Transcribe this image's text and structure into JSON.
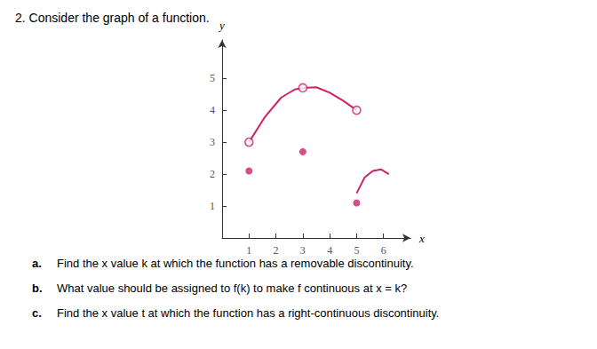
{
  "chart_data": {
    "type": "line",
    "title": "2. Consider the graph of a function.",
    "xlabel": "x",
    "ylabel": "y",
    "xlim": [
      0,
      7
    ],
    "ylim": [
      0,
      6.2
    ],
    "xticks": [
      1,
      2,
      3,
      4,
      5,
      6
    ],
    "yticks": [
      1,
      2,
      3,
      4,
      5
    ],
    "grid": false,
    "series": [
      {
        "type": "line",
        "color": "#cc2266",
        "x": [
          1,
          1.6,
          2.2,
          2.7,
          3
        ],
        "values": [
          3,
          3.8,
          4.4,
          4.65,
          4.7
        ]
      },
      {
        "type": "line",
        "color": "#cc2266",
        "x": [
          3,
          3.5,
          4,
          4.5,
          5
        ],
        "values": [
          4.7,
          4.72,
          4.55,
          4.3,
          4.0
        ]
      },
      {
        "type": "line",
        "color": "#cc2266",
        "x": [
          5,
          5.3,
          5.6,
          5.9,
          6.2
        ],
        "values": [
          1.4,
          1.9,
          2.1,
          2.15,
          2.0
        ]
      },
      {
        "type": "scatter",
        "marker": "circle",
        "color": "#cc2266",
        "x": [
          1,
          3,
          5
        ],
        "values": [
          2.1,
          2.7,
          1.1
        ]
      },
      {
        "type": "scatter",
        "marker": "open_circle",
        "color": "#cc2266",
        "x": [
          1,
          3,
          5
        ],
        "values": [
          3,
          4.7,
          4.0
        ]
      }
    ],
    "annotations": [
      {
        "label": "a.",
        "text": "Find the x value k at which the function has a removable discontinuity."
      },
      {
        "label": "b.",
        "text": "What value should be assigned to f(k) to make f continuous at x = k?"
      },
      {
        "label": "c.",
        "text": "Find the x value t at which the function has a right-continuous discontinuity."
      }
    ]
  }
}
